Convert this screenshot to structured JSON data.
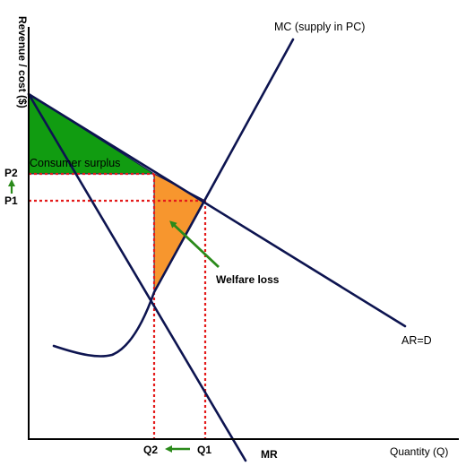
{
  "axes": {
    "ylabel": "Revenue / cost ($)",
    "xlabel": "Quantity (Q)"
  },
  "curves": {
    "mc_label": "MC (supply in PC)",
    "ard_label": "AR=D",
    "mr_label": "MR"
  },
  "prices": {
    "p2": "P2",
    "p1": "P1"
  },
  "quantities": {
    "q2": "Q2",
    "q1": "Q1"
  },
  "annotations": {
    "consumer_surplus": "Consumer surplus",
    "welfare_loss": "Welfare loss"
  },
  "colors": {
    "curve": "#0d1450",
    "axis": "#000000",
    "dotted": "#e41a1a",
    "consumer_surplus_fill": "#119c11",
    "welfare_loss_fill": "#f7962e",
    "arrow": "#2a8a1a"
  }
}
